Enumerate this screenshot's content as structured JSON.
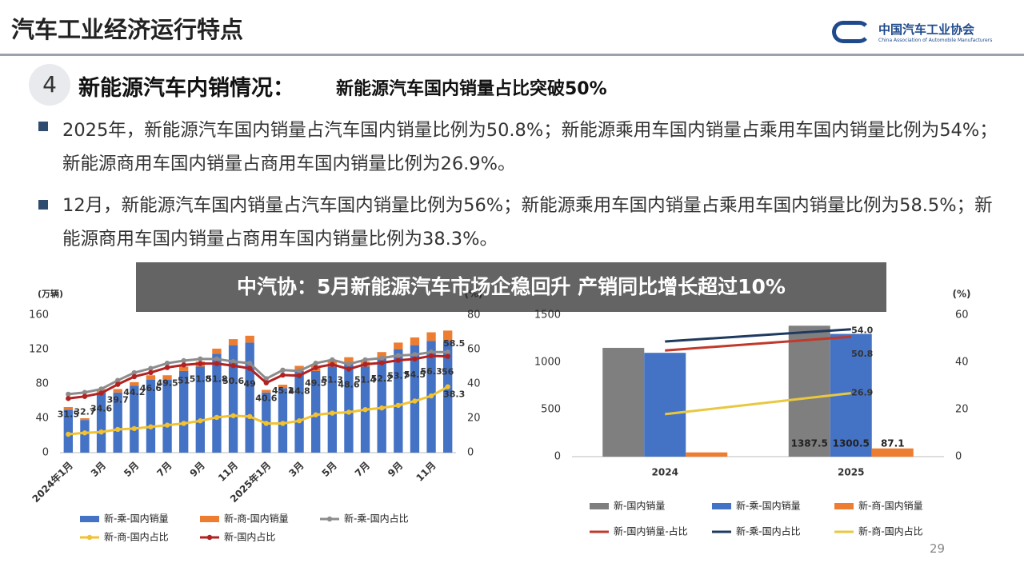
{
  "header": {
    "title": "汽车工业经济运行特点",
    "logo_cn": "中国汽车工业协会",
    "logo_en": "China Association of Automobile Manufacturers"
  },
  "section": {
    "number": "4",
    "heading": "新能源汽车内销情况：",
    "subheading": "新能源汽车国内销量占比突破50%"
  },
  "bullets": [
    "2025年，新能源汽车国内销量占汽车国内销量比例为50.8%；新能源乘用车国内销量占乘用车国内销量比例为54%；新能源商用车国内销量占商用车国内销量比例为26.9%。",
    "12月，新能源汽车国内销量占汽车国内销量比例为56%；新能源乘用车国内销量占乘用车国内销量比例为58.5%；新能源商用车国内销量占商用车国内销量比例为38.3%。"
  ],
  "banner": "中汽协：5月新能源汽车市场企稳回升 产销同比增长超过10%",
  "page_number": "29",
  "chart_data": [
    {
      "type": "bar",
      "stacked": true,
      "y_unit": "(万辆)",
      "y2_unit": "(%)",
      "categories": [
        "2024年1月",
        null,
        "3月",
        null,
        "5月",
        null,
        "7月",
        null,
        "9月",
        null,
        "11月",
        null,
        "2025年1月",
        null,
        "3月",
        null,
        "5月",
        null,
        "7月",
        null,
        "9月",
        null,
        "11月",
        null
      ],
      "series": [
        {
          "name": "新-乘-国内销量",
          "type": "bar",
          "color": "#4472c4",
          "values": [
            50,
            38,
            70,
            70,
            78,
            85,
            85,
            95,
            100,
            115,
            125,
            128,
            70,
            75,
            95,
            95,
            100,
            105,
            100,
            110,
            120,
            125,
            130,
            130
          ]
        },
        {
          "name": "新-商-国内销量",
          "type": "bar",
          "color": "#ed7d31",
          "values": [
            3,
            2,
            4,
            4,
            4,
            5,
            5,
            5,
            6,
            6,
            7,
            8,
            3,
            4,
            6,
            6,
            6,
            6,
            6,
            7,
            8,
            9,
            10,
            12
          ]
        },
        {
          "name": "新-乘-国内占比",
          "type": "line",
          "axis": "y2",
          "color": "#8c8c8c",
          "data_labels": "last",
          "values": [
            34,
            35,
            37,
            42,
            46.5,
            49,
            52,
            53.5,
            54.5,
            54.5,
            53,
            52,
            43,
            48,
            47.5,
            52,
            54,
            51.5,
            54,
            55,
            56.5,
            57,
            58.5,
            58.5
          ]
        },
        {
          "name": "新-商-国内占比",
          "type": "line",
          "axis": "y2",
          "color": "#f2c230",
          "data_labels": "last",
          "values": [
            10.7,
            11.5,
            12,
            13.5,
            14,
            15,
            16,
            17,
            18.5,
            20.5,
            21.5,
            21,
            17,
            17,
            18.5,
            22,
            23,
            23.5,
            25,
            26,
            27.5,
            30,
            33,
            38.3
          ]
        },
        {
          "name": "新-国内占比",
          "type": "line",
          "axis": "y2",
          "color": "#b22222",
          "data_labels": "all",
          "values": [
            31.5,
            32.7,
            34.6,
            39.7,
            44.2,
            46.6,
            49.5,
            51,
            51.8,
            51.8,
            50.6,
            49,
            40.6,
            45.1,
            44.8,
            49.5,
            51.3,
            48.6,
            51.4,
            52.2,
            53.7,
            54.5,
            56.3,
            56
          ]
        }
      ],
      "ylim": [
        0,
        160
      ],
      "yticks": [
        0,
        40,
        80,
        120,
        160
      ],
      "y2lim": [
        0,
        80
      ],
      "y2ticks": [
        0,
        20,
        40,
        60,
        80
      ]
    },
    {
      "type": "bar",
      "stacked": false,
      "y2_unit": "(%)",
      "categories": [
        "2024",
        "2025"
      ],
      "series": [
        {
          "name": "新-国内销量",
          "type": "bar",
          "color": "#7f7f7f",
          "values": [
            1153,
            1387.5
          ],
          "value_labels": [
            null,
            "1387.5"
          ]
        },
        {
          "name": "新-乘-国内销量",
          "type": "bar",
          "color": "#4472c4",
          "values": [
            1100,
            1300.5
          ],
          "value_labels": [
            null,
            "1300.5"
          ]
        },
        {
          "name": "新-商-国内销量",
          "type": "bar",
          "color": "#ed7d31",
          "values": [
            45,
            87.1
          ],
          "value_labels": [
            null,
            "87.1"
          ]
        },
        {
          "name": "新-国内销量-占比",
          "type": "line",
          "axis": "y2",
          "color": "#c0392b",
          "values": [
            45,
            50.8
          ],
          "value_labels": [
            null,
            "50.8"
          ]
        },
        {
          "name": "新-乘-国内占比",
          "type": "line",
          "axis": "y2",
          "color": "#1f3a5f",
          "values": [
            48.8,
            54
          ],
          "value_labels": [
            null,
            "54.0"
          ]
        },
        {
          "name": "新-商-国内占比",
          "type": "line",
          "axis": "y2",
          "color": "#e8c840",
          "values": [
            18,
            26.9
          ],
          "value_labels": [
            null,
            "26.9"
          ]
        }
      ],
      "ylim": [
        0,
        1500
      ],
      "yticks": [
        0,
        500,
        1000,
        1500
      ],
      "y2lim": [
        0,
        60
      ],
      "y2ticks": [
        0,
        20,
        40,
        60
      ]
    }
  ]
}
